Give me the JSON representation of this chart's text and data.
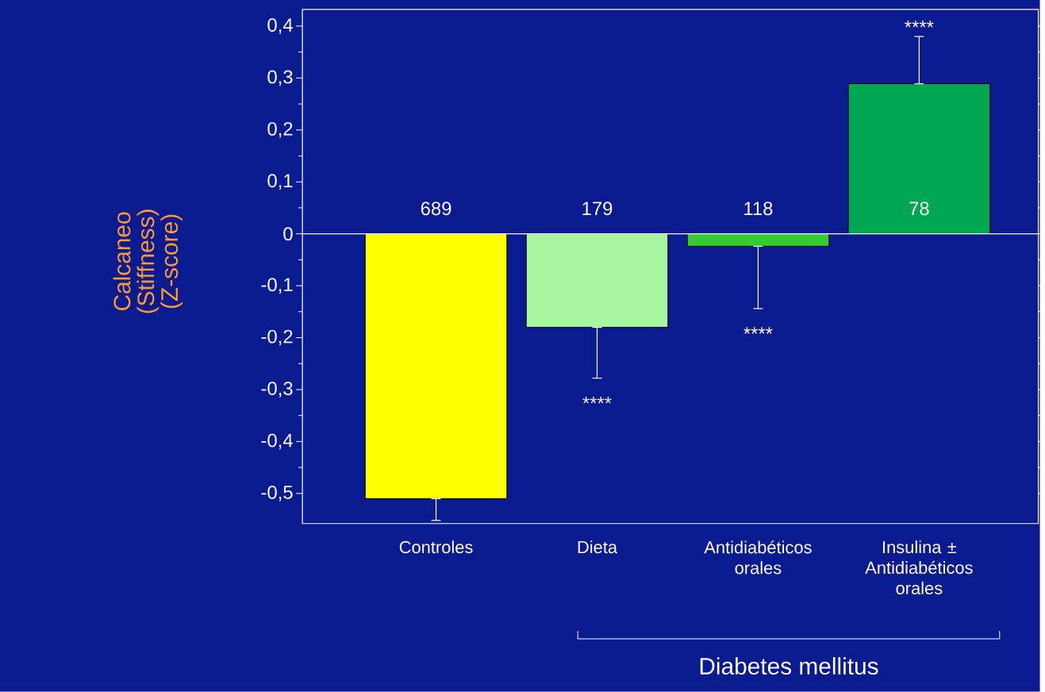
{
  "chart_data": {
    "type": "bar",
    "ylabel": "Calcaneo (Stiffness) (Z-score)",
    "categories": [
      "Controles",
      "Dieta",
      "Antidiabéticos orales",
      "Insulina ± Antidiabéticos orales"
    ],
    "values": [
      -0.51,
      -0.18,
      -0.024,
      0.289
    ],
    "colors": [
      "#ffff00",
      "#a8f5a0",
      "#33cc33",
      "#00a651"
    ],
    "errors": [
      [
        -0.552,
        -0.51
      ],
      [
        -0.278,
        -0.18
      ],
      [
        -0.144,
        -0.024
      ],
      [
        0.289,
        0.38
      ]
    ],
    "ylim": [
      -0.558,
      0.432
    ],
    "yticks": [
      {
        "value": -0.5,
        "label": "-0,5"
      },
      {
        "value": -0.4,
        "label": "-0,4"
      },
      {
        "value": -0.3,
        "label": "-0,3"
      },
      {
        "value": -0.2,
        "label": "-0,2"
      },
      {
        "value": -0.1,
        "label": "-0,1"
      },
      {
        "value": 0,
        "label": "0"
      },
      {
        "value": 0.1,
        "label": "0,1"
      },
      {
        "value": 0.2,
        "label": "0,2"
      },
      {
        "value": 0.3,
        "label": "0,3"
      },
      {
        "value": 0.4,
        "label": "0,4"
      }
    ],
    "ref_lines": [
      {
        "axis": "y",
        "value": 0,
        "color": "#ffffff"
      }
    ],
    "annotations": [
      "689",
      "179",
      "118",
      "78",
      "****",
      "****",
      "****",
      "Diabetes mellitus"
    ]
  }
}
